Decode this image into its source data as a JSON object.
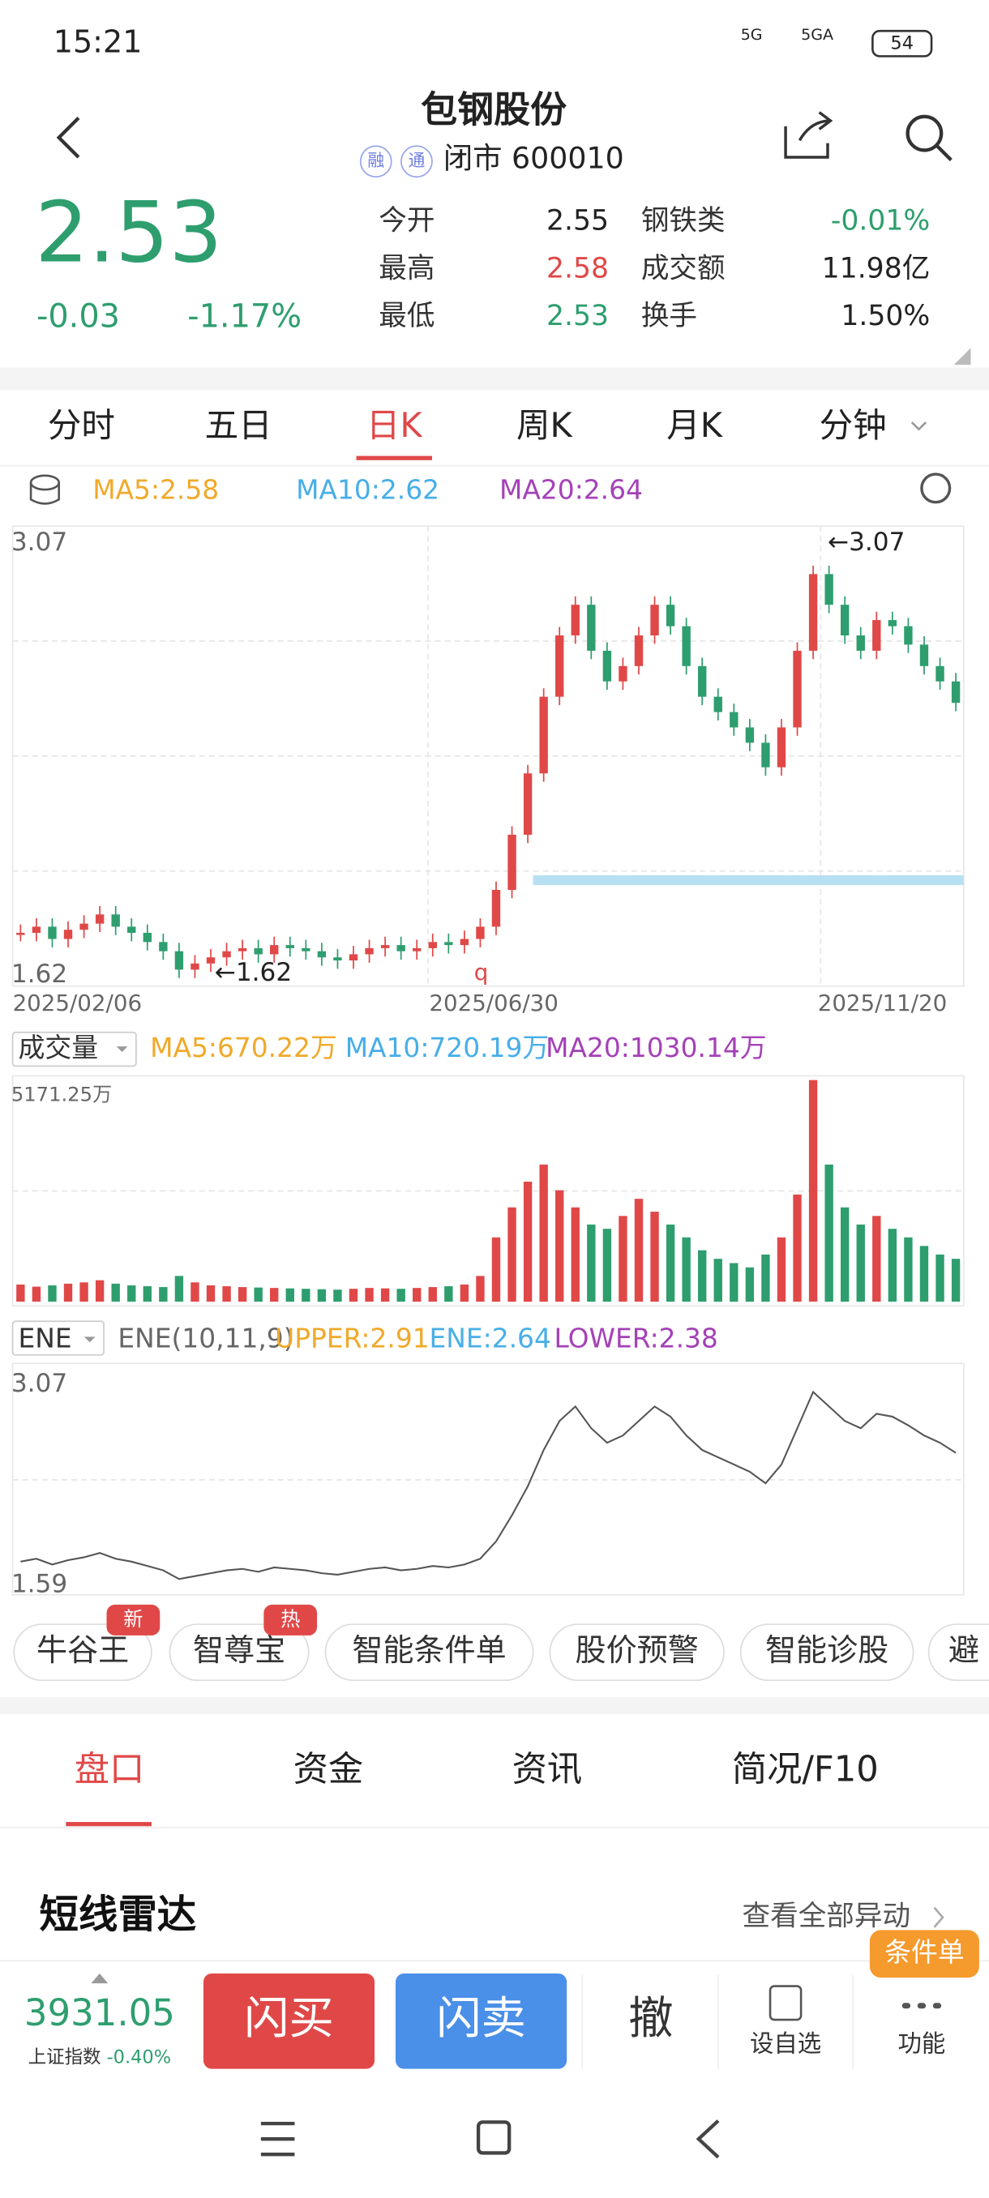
{
  "status": {
    "time": "15:21",
    "net1": "5G",
    "net2": "5GA",
    "battery": "54"
  },
  "header": {
    "title": "包钢股份",
    "badges": [
      "融",
      "通"
    ],
    "subtitle": "闭市 600010"
  },
  "quote": {
    "price": "2.53",
    "change": "-0.03",
    "pct": "-1.17%",
    "stats": [
      [
        "今开",
        "2.55",
        "钢铁类",
        "-0.01%"
      ],
      [
        "最高",
        "2.58",
        "成交额",
        "11.98亿"
      ],
      [
        "最低",
        "2.53",
        "换手",
        "1.50%"
      ]
    ]
  },
  "tabs": [
    "分时",
    "五日",
    "日K",
    "周K",
    "月K",
    "分钟"
  ],
  "ma": [
    "MA5:2.58",
    "MA10:2.62",
    "MA20:2.64"
  ],
  "kline": {
    "ylim": [
      1.62,
      3.07
    ],
    "yticks": [
      1.62,
      3.07
    ],
    "max_marker": "←3.07",
    "min_marker": "←1.62",
    "q_label": "q",
    "dates": [
      "2025/02/06",
      "2025/06/30",
      "2025/11/20"
    ],
    "closes": [
      1.78,
      1.8,
      1.76,
      1.79,
      1.81,
      1.84,
      1.8,
      1.78,
      1.75,
      1.72,
      1.66,
      1.68,
      1.7,
      1.72,
      1.73,
      1.71,
      1.74,
      1.73,
      1.72,
      1.7,
      1.69,
      1.71,
      1.73,
      1.74,
      1.72,
      1.73,
      1.75,
      1.74,
      1.76,
      1.8,
      1.92,
      2.1,
      2.3,
      2.55,
      2.75,
      2.85,
      2.7,
      2.6,
      2.65,
      2.75,
      2.85,
      2.78,
      2.65,
      2.55,
      2.5,
      2.45,
      2.4,
      2.32,
      2.45,
      2.7,
      2.95,
      2.85,
      2.75,
      2.7,
      2.8,
      2.78,
      2.72,
      2.65,
      2.6,
      2.53
    ]
  },
  "volume": {
    "selector": "成交量",
    "ma": [
      "MA5:670.22万",
      "MA10:720.19万",
      "MA20:1030.14万"
    ],
    "max_label": "5171.25万",
    "ylim": [
      0,
      5171.25
    ],
    "values": [
      400,
      350,
      380,
      420,
      450,
      500,
      420,
      380,
      360,
      340,
      600,
      450,
      380,
      360,
      340,
      330,
      320,
      310,
      300,
      290,
      280,
      300,
      320,
      310,
      300,
      320,
      340,
      360,
      400,
      600,
      1500,
      2200,
      2800,
      3200,
      2600,
      2200,
      1800,
      1700,
      2000,
      2400,
      2100,
      1800,
      1500,
      1200,
      1000,
      900,
      800,
      1100,
      1500,
      2500,
      5171.25,
      3200,
      2200,
      1800,
      2000,
      1700,
      1500,
      1300,
      1100,
      1000
    ]
  },
  "ene": {
    "selector": "ENE",
    "params": "ENE(10,11,9)",
    "items": [
      "UPPER:2.91",
      "ENE:2.64",
      "LOWER:2.38"
    ],
    "ylim": [
      1.59,
      3.07
    ],
    "yticks": [
      1.59,
      3.07
    ]
  },
  "tools": [
    {
      "label": "牛谷王",
      "badge": "新"
    },
    {
      "label": "智尊宝",
      "badge": "热"
    },
    {
      "label": "智能条件单"
    },
    {
      "label": "股价预警"
    },
    {
      "label": "智能诊股"
    },
    {
      "label": "避"
    }
  ],
  "subtabs": [
    "盘口",
    "资金",
    "资讯",
    "简况/F10"
  ],
  "section": {
    "title": "短线雷达",
    "link": "查看全部异动"
  },
  "bottom": {
    "index": "3931.05",
    "index_name": "上证指数",
    "index_change": "-0.40%",
    "buy": "闪买",
    "sell": "闪卖",
    "cancel": "撤",
    "watch": "设自选",
    "more": "功能",
    "badge": "条件单"
  }
}
